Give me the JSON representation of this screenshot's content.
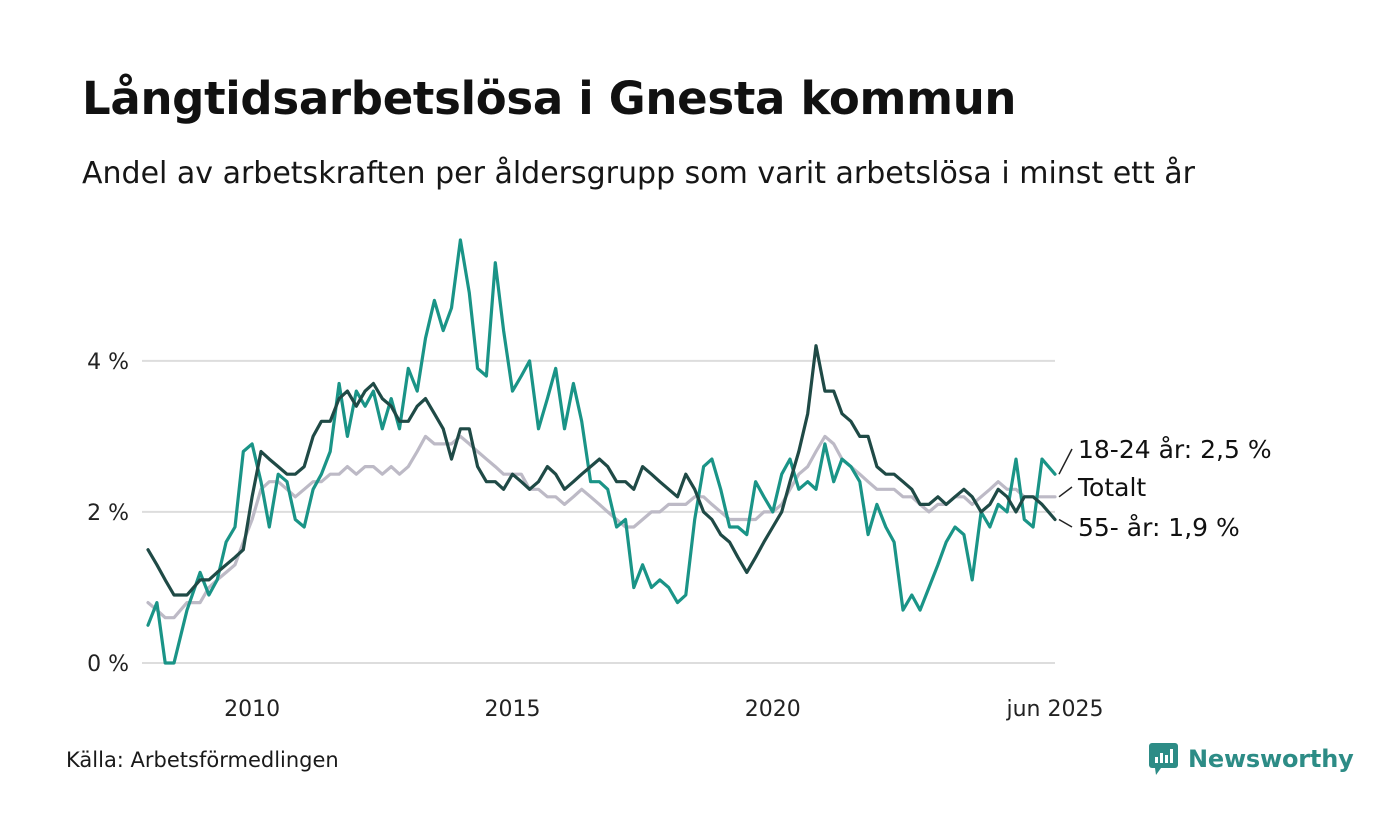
{
  "title": "Långtidsarbetslösa i Gnesta kommun",
  "subtitle": "Andel av arbetskraften per åldersgrupp som varit arbetslösa i minst ett år",
  "source": "Källa: Arbetsförmedlingen",
  "brand": {
    "name": "Newsworthy",
    "icon": "newsworthy-logo-icon",
    "color": "#2d8c86"
  },
  "chart_data": {
    "type": "line",
    "x_unit": "year",
    "xlim": [
      2008.0,
      2025.42
    ],
    "ylim": [
      0,
      5.6
    ],
    "y_ticks": [
      0,
      2,
      4
    ],
    "y_tick_labels": [
      "0 %",
      "2 %",
      "4 %"
    ],
    "x_ticks": [
      2010,
      2015,
      2020,
      2025.42
    ],
    "x_tick_labels": [
      "2010",
      "2015",
      "2020",
      "jun 2025"
    ],
    "grid": true,
    "series": [
      {
        "name": "18-24 år",
        "end_label": "18-24 år: 2,5 %",
        "color": "#1a9487",
        "x": [
          2008.0,
          2008.17,
          2008.33,
          2008.5,
          2008.75,
          2009.0,
          2009.17,
          2009.33,
          2009.5,
          2009.67,
          2009.83,
          2010.0,
          2010.17,
          2010.33,
          2010.5,
          2010.67,
          2010.83,
          2011.0,
          2011.17,
          2011.33,
          2011.5,
          2011.67,
          2011.83,
          2012.0,
          2012.17,
          2012.33,
          2012.5,
          2012.67,
          2012.83,
          2013.0,
          2013.17,
          2013.33,
          2013.5,
          2013.67,
          2013.83,
          2014.0,
          2014.17,
          2014.33,
          2014.5,
          2014.67,
          2014.83,
          2015.0,
          2015.17,
          2015.33,
          2015.5,
          2015.67,
          2015.83,
          2016.0,
          2016.17,
          2016.33,
          2016.5,
          2016.67,
          2016.83,
          2017.0,
          2017.17,
          2017.33,
          2017.5,
          2017.67,
          2017.83,
          2018.0,
          2018.17,
          2018.33,
          2018.5,
          2018.67,
          2018.83,
          2019.0,
          2019.17,
          2019.33,
          2019.5,
          2019.67,
          2019.83,
          2020.0,
          2020.17,
          2020.33,
          2020.5,
          2020.67,
          2020.83,
          2021.0,
          2021.17,
          2021.33,
          2021.5,
          2021.67,
          2021.83,
          2022.0,
          2022.17,
          2022.33,
          2022.5,
          2022.67,
          2022.83,
          2023.0,
          2023.17,
          2023.33,
          2023.5,
          2023.67,
          2023.83,
          2024.0,
          2024.17,
          2024.33,
          2024.5,
          2024.67,
          2024.83,
          2025.0,
          2025.17,
          2025.42
        ],
        "y": [
          0.5,
          0.8,
          0.0,
          0.0,
          0.7,
          1.2,
          0.9,
          1.1,
          1.6,
          1.8,
          2.8,
          2.9,
          2.4,
          1.8,
          2.5,
          2.4,
          1.9,
          1.8,
          2.3,
          2.5,
          2.8,
          3.7,
          3.0,
          3.6,
          3.4,
          3.6,
          3.1,
          3.5,
          3.1,
          3.9,
          3.6,
          4.3,
          4.8,
          4.4,
          4.7,
          5.6,
          4.9,
          3.9,
          3.8,
          5.3,
          4.4,
          3.6,
          3.8,
          4.0,
          3.1,
          3.5,
          3.9,
          3.1,
          3.7,
          3.2,
          2.4,
          2.4,
          2.3,
          1.8,
          1.9,
          1.0,
          1.3,
          1.0,
          1.1,
          1.0,
          0.8,
          0.9,
          1.9,
          2.6,
          2.7,
          2.3,
          1.8,
          1.8,
          1.7,
          2.4,
          2.2,
          2.0,
          2.5,
          2.7,
          2.3,
          2.4,
          2.3,
          2.9,
          2.4,
          2.7,
          2.6,
          2.4,
          1.7,
          2.1,
          1.8,
          1.6,
          0.7,
          0.9,
          0.7,
          1.0,
          1.3,
          1.6,
          1.8,
          1.7,
          1.1,
          2.0,
          1.8,
          2.1,
          2.0,
          2.7,
          1.9,
          1.8,
          2.7,
          2.5
        ]
      },
      {
        "name": "Totalt",
        "end_label": "Totalt",
        "color": "#bdbac6",
        "x": [
          2008.0,
          2008.17,
          2008.33,
          2008.5,
          2008.75,
          2009.0,
          2009.17,
          2009.33,
          2009.5,
          2009.67,
          2009.83,
          2010.0,
          2010.17,
          2010.33,
          2010.5,
          2010.67,
          2010.83,
          2011.0,
          2011.17,
          2011.33,
          2011.5,
          2011.67,
          2011.83,
          2012.0,
          2012.17,
          2012.33,
          2012.5,
          2012.67,
          2012.83,
          2013.0,
          2013.17,
          2013.33,
          2013.5,
          2013.67,
          2013.83,
          2014.0,
          2014.17,
          2014.33,
          2014.5,
          2014.67,
          2014.83,
          2015.0,
          2015.17,
          2015.33,
          2015.5,
          2015.67,
          2015.83,
          2016.0,
          2016.17,
          2016.33,
          2016.5,
          2016.67,
          2016.83,
          2017.0,
          2017.17,
          2017.33,
          2017.5,
          2017.67,
          2017.83,
          2018.0,
          2018.17,
          2018.33,
          2018.5,
          2018.67,
          2018.83,
          2019.0,
          2019.17,
          2019.33,
          2019.5,
          2019.67,
          2019.83,
          2020.0,
          2020.17,
          2020.33,
          2020.5,
          2020.67,
          2020.83,
          2021.0,
          2021.17,
          2021.33,
          2021.5,
          2021.67,
          2021.83,
          2022.0,
          2022.17,
          2022.33,
          2022.5,
          2022.67,
          2022.83,
          2023.0,
          2023.17,
          2023.33,
          2023.5,
          2023.67,
          2023.83,
          2024.0,
          2024.17,
          2024.33,
          2024.5,
          2024.67,
          2024.83,
          2025.0,
          2025.17,
          2025.42
        ],
        "y": [
          0.8,
          0.7,
          0.6,
          0.6,
          0.8,
          0.8,
          1.0,
          1.1,
          1.2,
          1.3,
          1.6,
          1.9,
          2.3,
          2.4,
          2.4,
          2.3,
          2.2,
          2.3,
          2.4,
          2.4,
          2.5,
          2.5,
          2.6,
          2.5,
          2.6,
          2.6,
          2.5,
          2.6,
          2.5,
          2.6,
          2.8,
          3.0,
          2.9,
          2.9,
          2.9,
          3.0,
          2.9,
          2.8,
          2.7,
          2.6,
          2.5,
          2.5,
          2.5,
          2.3,
          2.3,
          2.2,
          2.2,
          2.1,
          2.2,
          2.3,
          2.2,
          2.1,
          2.0,
          1.9,
          1.8,
          1.8,
          1.9,
          2.0,
          2.0,
          2.1,
          2.1,
          2.1,
          2.2,
          2.2,
          2.1,
          2.0,
          1.9,
          1.9,
          1.9,
          1.9,
          2.0,
          2.0,
          2.1,
          2.3,
          2.5,
          2.6,
          2.8,
          3.0,
          2.9,
          2.7,
          2.6,
          2.5,
          2.4,
          2.3,
          2.3,
          2.3,
          2.2,
          2.2,
          2.1,
          2.0,
          2.1,
          2.1,
          2.2,
          2.2,
          2.1,
          2.2,
          2.3,
          2.4,
          2.3,
          2.3,
          2.2,
          2.2,
          2.2,
          2.2
        ]
      },
      {
        "name": "55- år",
        "end_label": "55- år: 1,9 %",
        "color": "#1f4a46",
        "x": [
          2008.0,
          2008.17,
          2008.33,
          2008.5,
          2008.75,
          2009.0,
          2009.17,
          2009.33,
          2009.5,
          2009.67,
          2009.83,
          2010.0,
          2010.17,
          2010.33,
          2010.5,
          2010.67,
          2010.83,
          2011.0,
          2011.17,
          2011.33,
          2011.5,
          2011.67,
          2011.83,
          2012.0,
          2012.17,
          2012.33,
          2012.5,
          2012.67,
          2012.83,
          2013.0,
          2013.17,
          2013.33,
          2013.5,
          2013.67,
          2013.83,
          2014.0,
          2014.17,
          2014.33,
          2014.5,
          2014.67,
          2014.83,
          2015.0,
          2015.17,
          2015.33,
          2015.5,
          2015.67,
          2015.83,
          2016.0,
          2016.17,
          2016.33,
          2016.5,
          2016.67,
          2016.83,
          2017.0,
          2017.17,
          2017.33,
          2017.5,
          2017.67,
          2017.83,
          2018.0,
          2018.17,
          2018.33,
          2018.5,
          2018.67,
          2018.83,
          2019.0,
          2019.17,
          2019.33,
          2019.5,
          2019.67,
          2019.83,
          2020.0,
          2020.17,
          2020.33,
          2020.5,
          2020.67,
          2020.83,
          2021.0,
          2021.17,
          2021.33,
          2021.5,
          2021.67,
          2021.83,
          2022.0,
          2022.17,
          2022.33,
          2022.5,
          2022.67,
          2022.83,
          2023.0,
          2023.17,
          2023.33,
          2023.5,
          2023.67,
          2023.83,
          2024.0,
          2024.17,
          2024.33,
          2024.5,
          2024.67,
          2024.83,
          2025.0,
          2025.17,
          2025.42
        ],
        "y": [
          1.5,
          1.3,
          1.1,
          0.9,
          0.9,
          1.1,
          1.1,
          1.2,
          1.3,
          1.4,
          1.5,
          2.2,
          2.8,
          2.7,
          2.6,
          2.5,
          2.5,
          2.6,
          3.0,
          3.2,
          3.2,
          3.5,
          3.6,
          3.4,
          3.6,
          3.7,
          3.5,
          3.4,
          3.2,
          3.2,
          3.4,
          3.5,
          3.3,
          3.1,
          2.7,
          3.1,
          3.1,
          2.6,
          2.4,
          2.4,
          2.3,
          2.5,
          2.4,
          2.3,
          2.4,
          2.6,
          2.5,
          2.3,
          2.4,
          2.5,
          2.6,
          2.7,
          2.6,
          2.4,
          2.4,
          2.3,
          2.6,
          2.5,
          2.4,
          2.3,
          2.2,
          2.5,
          2.3,
          2.0,
          1.9,
          1.7,
          1.6,
          1.4,
          1.2,
          1.4,
          1.6,
          1.8,
          2.0,
          2.4,
          2.8,
          3.3,
          4.2,
          3.6,
          3.6,
          3.3,
          3.2,
          3.0,
          3.0,
          2.6,
          2.5,
          2.5,
          2.4,
          2.3,
          2.1,
          2.1,
          2.2,
          2.1,
          2.2,
          2.3,
          2.2,
          2.0,
          2.1,
          2.3,
          2.2,
          2.0,
          2.2,
          2.2,
          2.1,
          1.9
        ]
      }
    ]
  }
}
